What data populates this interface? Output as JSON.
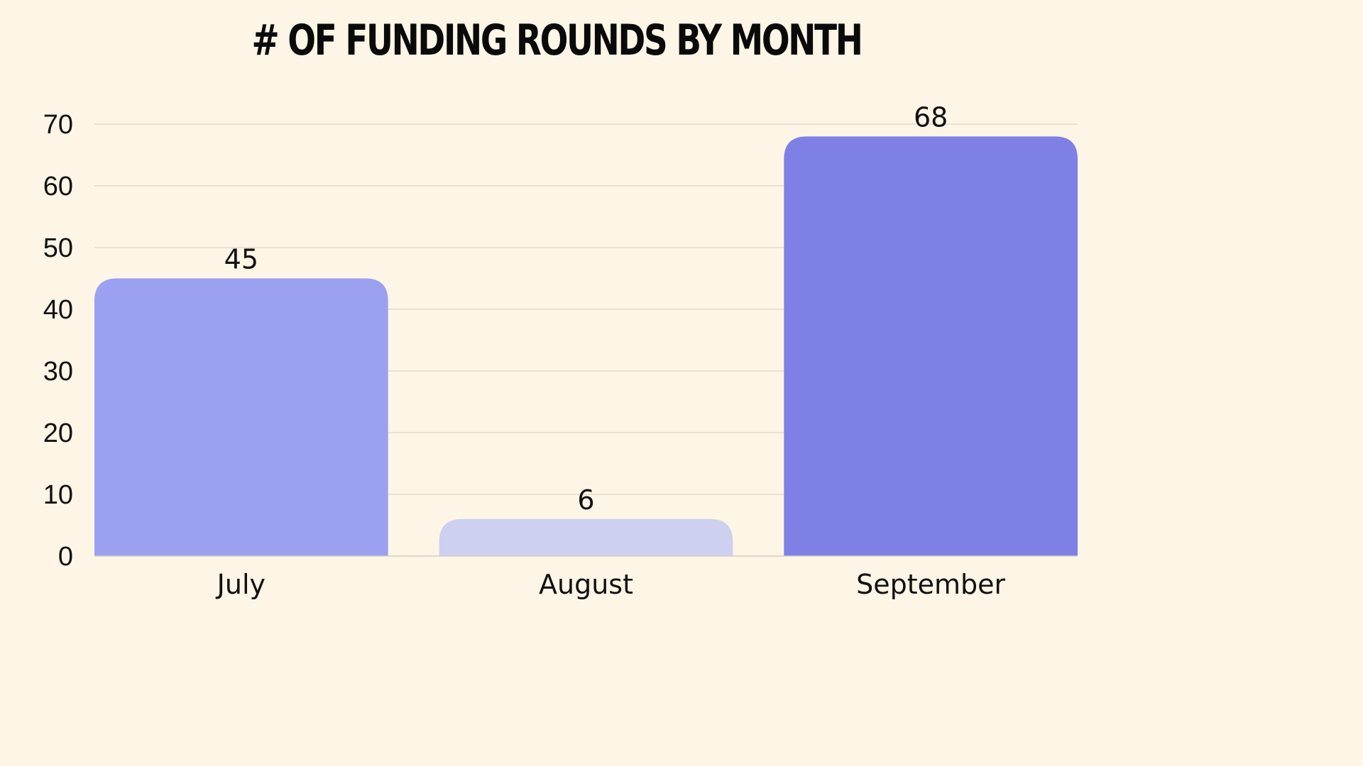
{
  "chart_data": {
    "type": "bar",
    "title": "# OF FUNDING ROUNDS BY MONTH",
    "xlabel": "",
    "ylabel": "",
    "categories": [
      "July",
      "August",
      "September"
    ],
    "values": [
      45,
      6,
      68
    ],
    "ylim": [
      0,
      70
    ],
    "yticks": [
      0,
      10,
      20,
      30,
      40,
      50,
      60,
      70
    ],
    "grid": true,
    "legend": "none",
    "colors": [
      "#9ba0f0",
      "#cdd0ef",
      "#7e80e6"
    ],
    "background": "#fdf5e6"
  }
}
